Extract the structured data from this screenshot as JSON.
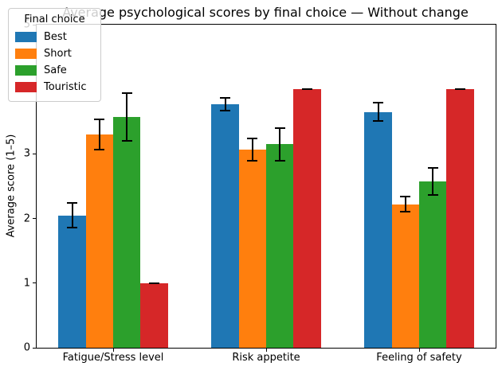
{
  "chart_data": {
    "type": "bar",
    "title": "Average psychological scores by final choice — Without change",
    "xlabel": "",
    "ylabel": "Average score (1–5)",
    "ylim": [
      0,
      5
    ],
    "yticks": [
      0,
      1,
      2,
      3,
      4,
      5
    ],
    "grid": false,
    "legend_title": "Final choice",
    "legend_position": "upper left",
    "error_bars": true,
    "categories": [
      "Fatigue/Stress level",
      "Risk appetite",
      "Feeling of safety"
    ],
    "series": [
      {
        "name": "Best",
        "color": "#1f77b4",
        "values": [
          2.05,
          3.77,
          3.65
        ],
        "errors": [
          0.19,
          0.1,
          0.14
        ]
      },
      {
        "name": "Short",
        "color": "#ff7f0e",
        "values": [
          3.3,
          3.07,
          2.22
        ],
        "errors": [
          0.23,
          0.17,
          0.12
        ]
      },
      {
        "name": "Safe",
        "color": "#2ca02c",
        "values": [
          3.57,
          3.15,
          2.57
        ],
        "errors": [
          0.37,
          0.25,
          0.21
        ]
      },
      {
        "name": "Touristic",
        "color": "#d62728",
        "values": [
          1.0,
          4.0,
          4.0
        ],
        "errors": [
          0.0,
          0.0,
          0.0
        ]
      }
    ]
  }
}
